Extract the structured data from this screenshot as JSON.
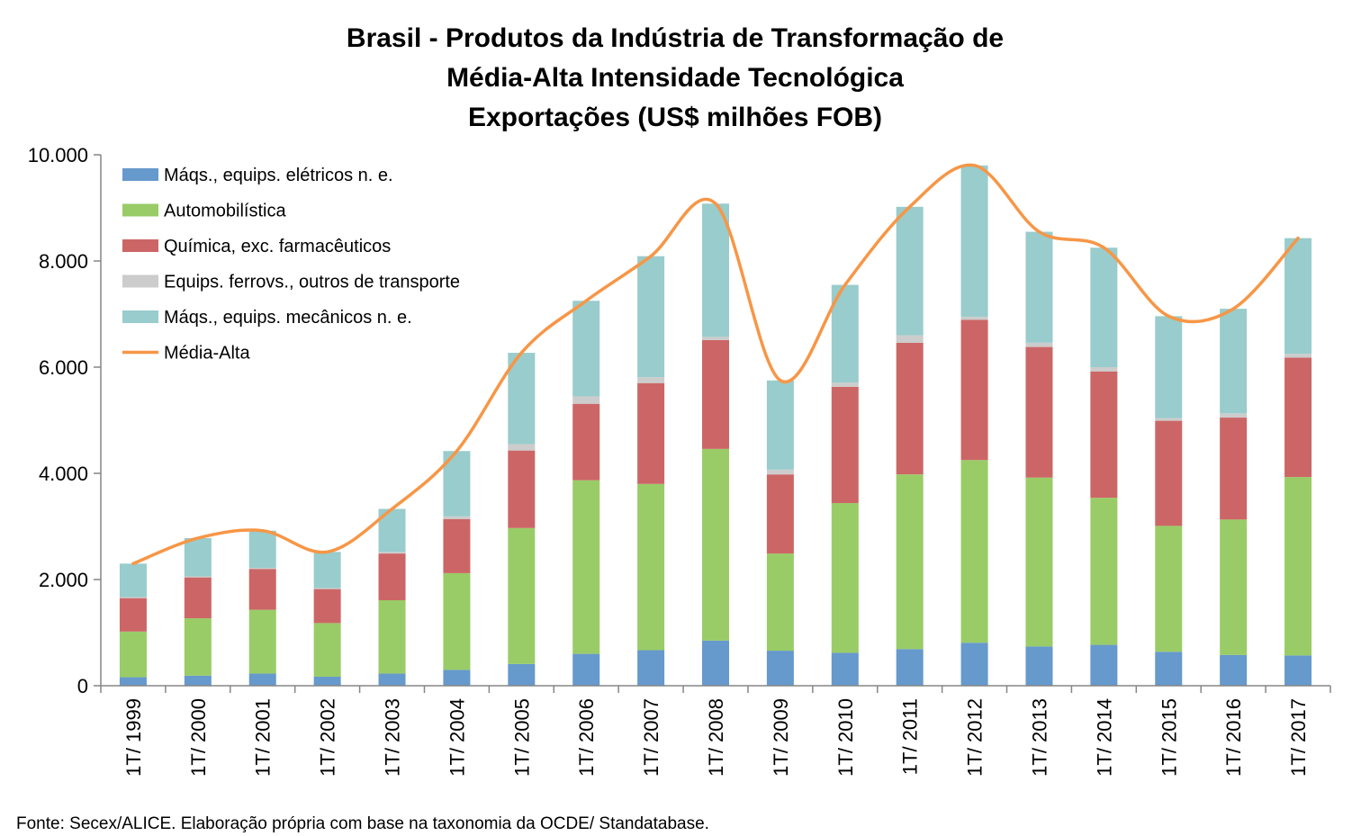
{
  "chart_data": {
    "type": "bar",
    "stacked": true,
    "title": [
      "Brasil - Produtos da Indústria de Transformação de",
      "Média-Alta Intensidade Tecnológica",
      "Exportações (US$ milhões FOB)"
    ],
    "xlabel": "",
    "ylabel": "",
    "ylim": [
      0,
      10000
    ],
    "yticks": [
      0,
      2000,
      4000,
      6000,
      8000,
      10000
    ],
    "ytick_labels": [
      "0",
      "2.000",
      "4.000",
      "6.000",
      "8.000",
      "10.000"
    ],
    "grid": false,
    "legend_position": "top-left",
    "categories": [
      "1T/ 1999",
      "1T/ 2000",
      "1T/ 2001",
      "1T/ 2002",
      "1T/ 2003",
      "1T/ 2004",
      "1T/ 2005",
      "1T/ 2006",
      "1T/ 2007",
      "1T/ 2008",
      "1T/ 2009",
      "1T/ 2010",
      "1T/ 2011",
      "1T/ 2012",
      "1T/ 2013",
      "1T/ 2014",
      "1T/ 2015",
      "1T/ 2016",
      "1T/ 2017"
    ],
    "series": [
      {
        "name": "Máqs., equips. elétricos n. e.",
        "color": "#6699cc",
        "values": [
          160,
          190,
          230,
          170,
          230,
          300,
          410,
          600,
          670,
          850,
          660,
          620,
          690,
          810,
          740,
          770,
          640,
          580,
          570
        ]
      },
      {
        "name": "Automobilística",
        "color": "#99cc66",
        "values": [
          860,
          1080,
          1200,
          1010,
          1380,
          1820,
          2560,
          3270,
          3130,
          3610,
          1830,
          2820,
          3290,
          3440,
          3180,
          2770,
          2370,
          2550,
          3360
        ]
      },
      {
        "name": "Química, exc. farmacêuticos",
        "color": "#cc6666",
        "values": [
          630,
          770,
          770,
          640,
          880,
          1020,
          1460,
          1440,
          1900,
          2050,
          1490,
          2190,
          2480,
          2640,
          2460,
          2380,
          1980,
          1920,
          2250
        ]
      },
      {
        "name": "Equips. ferrovs., outros de transporte",
        "color": "#cccccc",
        "values": [
          20,
          20,
          20,
          20,
          30,
          50,
          120,
          140,
          110,
          60,
          90,
          80,
          140,
          60,
          80,
          80,
          50,
          80,
          70
        ]
      },
      {
        "name": "Máqs., equips. mecânicos  n. e.",
        "color": "#99cccc",
        "values": [
          630,
          720,
          700,
          680,
          810,
          1230,
          1720,
          1800,
          2280,
          2510,
          1680,
          1840,
          2420,
          2850,
          2090,
          2250,
          1920,
          1970,
          2180
        ]
      }
    ],
    "line": {
      "name": "Média-Alta",
      "color": "#f79646",
      "values": [
        2300,
        2780,
        2920,
        2520,
        3330,
        4420,
        6270,
        7250,
        8090,
        9080,
        5750,
        7550,
        9020,
        9800,
        8550,
        8250,
        6960,
        7100,
        8430
      ]
    }
  },
  "source_note": "Fonte: Secex/ALICE. Elaboração própria com base na taxonomia da OCDE/ Standatabase."
}
